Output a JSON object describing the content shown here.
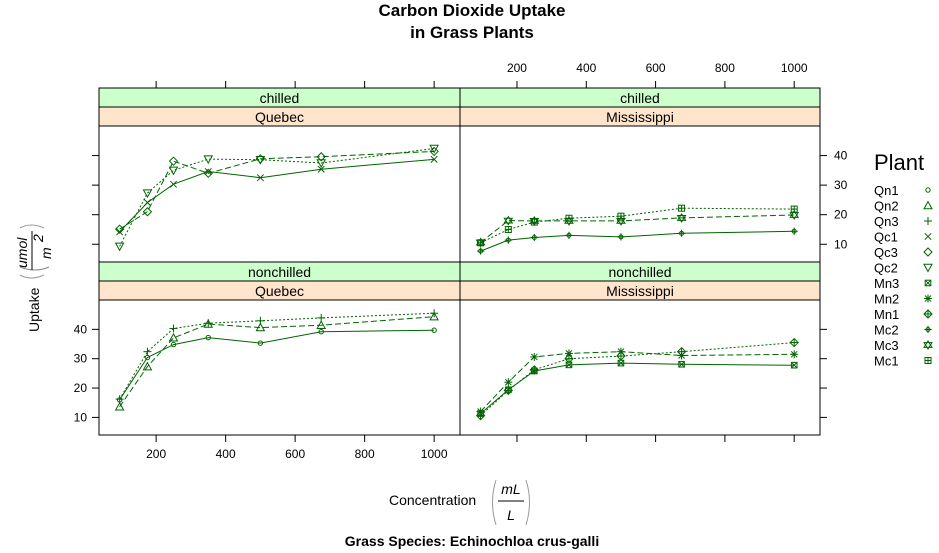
{
  "chart_data": {
    "type": "line",
    "title_line1": "Carbon Dioxide Uptake",
    "title_line2": "in Grass Plants",
    "xlabel": "Concentration",
    "xlabel_unit_num": "mL",
    "xlabel_unit_den": "L",
    "ylabel": "Uptake",
    "ylabel_unit_num": "umol",
    "ylabel_unit_den": "m",
    "ylabel_unit_den_exp": "2",
    "subtitle": "Grass Species: Echinochloa crus-galli",
    "xlim": [
      50,
      1060
    ],
    "ylim": [
      4,
      50
    ],
    "x_ticks": [
      200,
      400,
      600,
      800,
      1000
    ],
    "x_tick_labels": [
      "200",
      "400",
      "600",
      "800",
      "1000"
    ],
    "y_ticks": [
      10,
      20,
      30,
      40
    ],
    "y_tick_labels": [
      "10",
      "20",
      "30",
      "40"
    ],
    "x": [
      95,
      175,
      250,
      350,
      500,
      675,
      1000
    ],
    "color": "#006400",
    "strip_colors": {
      "treatment": "#ccffcc",
      "type": "#ffe5cc"
    },
    "legend": {
      "title": "Plant",
      "position": "right",
      "entries": [
        {
          "label": "Qn1",
          "symbol": "circle"
        },
        {
          "label": "Qn2",
          "symbol": "triangle-up"
        },
        {
          "label": "Qn3",
          "symbol": "plus"
        },
        {
          "label": "Qc1",
          "symbol": "cross"
        },
        {
          "label": "Qc3",
          "symbol": "diamond"
        },
        {
          "label": "Qc2",
          "symbol": "triangle-down"
        },
        {
          "label": "Mn3",
          "symbol": "square-cross"
        },
        {
          "label": "Mn2",
          "symbol": "asterisk"
        },
        {
          "label": "Mn1",
          "symbol": "diamond-plus"
        },
        {
          "label": "Mc2",
          "symbol": "circle-plus"
        },
        {
          "label": "Mc3",
          "symbol": "star-of-david"
        },
        {
          "label": "Mc1",
          "symbol": "square-plus"
        }
      ]
    },
    "panels": [
      {
        "treatment": "nonchilled",
        "type": "Quebec",
        "row": 0,
        "col": 0,
        "series": [
          {
            "name": "Qn1",
            "line": "solid",
            "values": [
              16.0,
              30.4,
              34.8,
              37.2,
              35.3,
              39.2,
              39.7
            ]
          },
          {
            "name": "Qn2",
            "line": "dashed",
            "values": [
              13.6,
              27.3,
              37.1,
              41.8,
              40.6,
              41.4,
              44.3
            ]
          },
          {
            "name": "Qn3",
            "line": "dotted",
            "values": [
              16.2,
              32.4,
              40.3,
              42.1,
              42.9,
              43.9,
              45.5
            ]
          }
        ]
      },
      {
        "treatment": "nonchilled",
        "type": "Mississippi",
        "row": 0,
        "col": 1,
        "series": [
          {
            "name": "Mn3",
            "line": "solid",
            "values": [
              11.3,
              19.4,
              25.8,
              27.9,
              28.5,
              28.1,
              27.8
            ]
          },
          {
            "name": "Mn2",
            "line": "dashed",
            "values": [
              12.0,
              22.0,
              30.6,
              31.8,
              32.4,
              31.1,
              31.5
            ]
          },
          {
            "name": "Mn1",
            "line": "dotted",
            "values": [
              10.6,
              19.2,
              26.2,
              30.0,
              30.9,
              32.4,
              35.5
            ]
          }
        ]
      },
      {
        "treatment": "chilled",
        "type": "Quebec",
        "row": 1,
        "col": 0,
        "series": [
          {
            "name": "Qc1",
            "line": "solid",
            "values": [
              14.2,
              24.1,
              30.3,
              34.6,
              32.5,
              35.4,
              38.7
            ]
          },
          {
            "name": "Qc3",
            "line": "dashed",
            "values": [
              15.1,
              21.0,
              38.1,
              34.0,
              38.9,
              39.6,
              41.4
            ]
          },
          {
            "name": "Qc2",
            "line": "dotted",
            "values": [
              9.3,
              27.3,
              35.0,
              38.8,
              38.6,
              37.5,
              42.4
            ]
          }
        ]
      },
      {
        "treatment": "chilled",
        "type": "Mississippi",
        "row": 1,
        "col": 1,
        "series": [
          {
            "name": "Mc2",
            "line": "solid",
            "values": [
              7.7,
              11.4,
              12.3,
              13.0,
              12.5,
              13.7,
              14.4
            ]
          },
          {
            "name": "Mc3",
            "line": "dashed",
            "values": [
              10.6,
              18.0,
              17.9,
              17.9,
              17.9,
              18.9,
              19.9
            ]
          },
          {
            "name": "Mc1",
            "line": "dotted",
            "values": [
              10.5,
              15.0,
              17.5,
              18.8,
              19.5,
              22.2,
              21.9
            ]
          }
        ]
      }
    ]
  }
}
